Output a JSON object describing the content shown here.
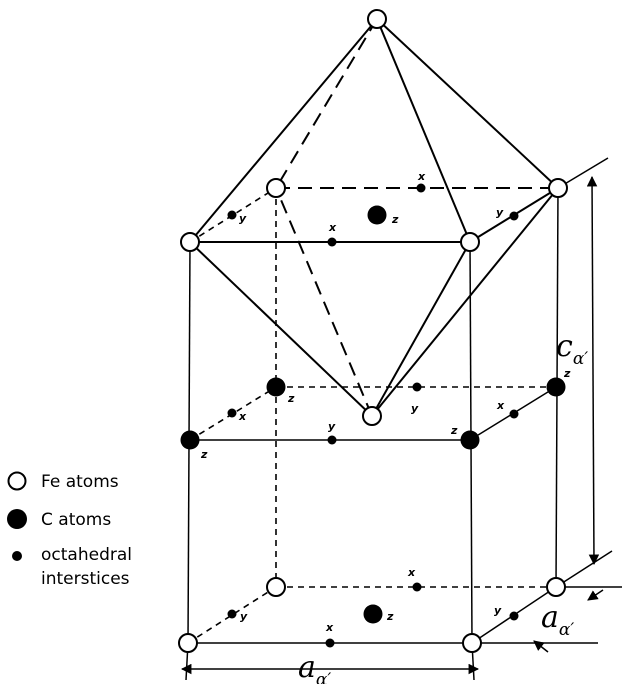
{
  "legend": {
    "fe": "Fe atoms",
    "c": "C atoms",
    "oct_line1": "octahedral",
    "oct_line2": "interstices"
  },
  "labels": {
    "x": "x",
    "y": "y",
    "z": "z"
  },
  "dimensions": {
    "c_main": "c",
    "c_sub": "α′",
    "a_main": "a",
    "a_sub": "α′"
  },
  "colors": {
    "line": "#000000",
    "fe_fill": "#ffffff",
    "c_fill": "#000000"
  }
}
